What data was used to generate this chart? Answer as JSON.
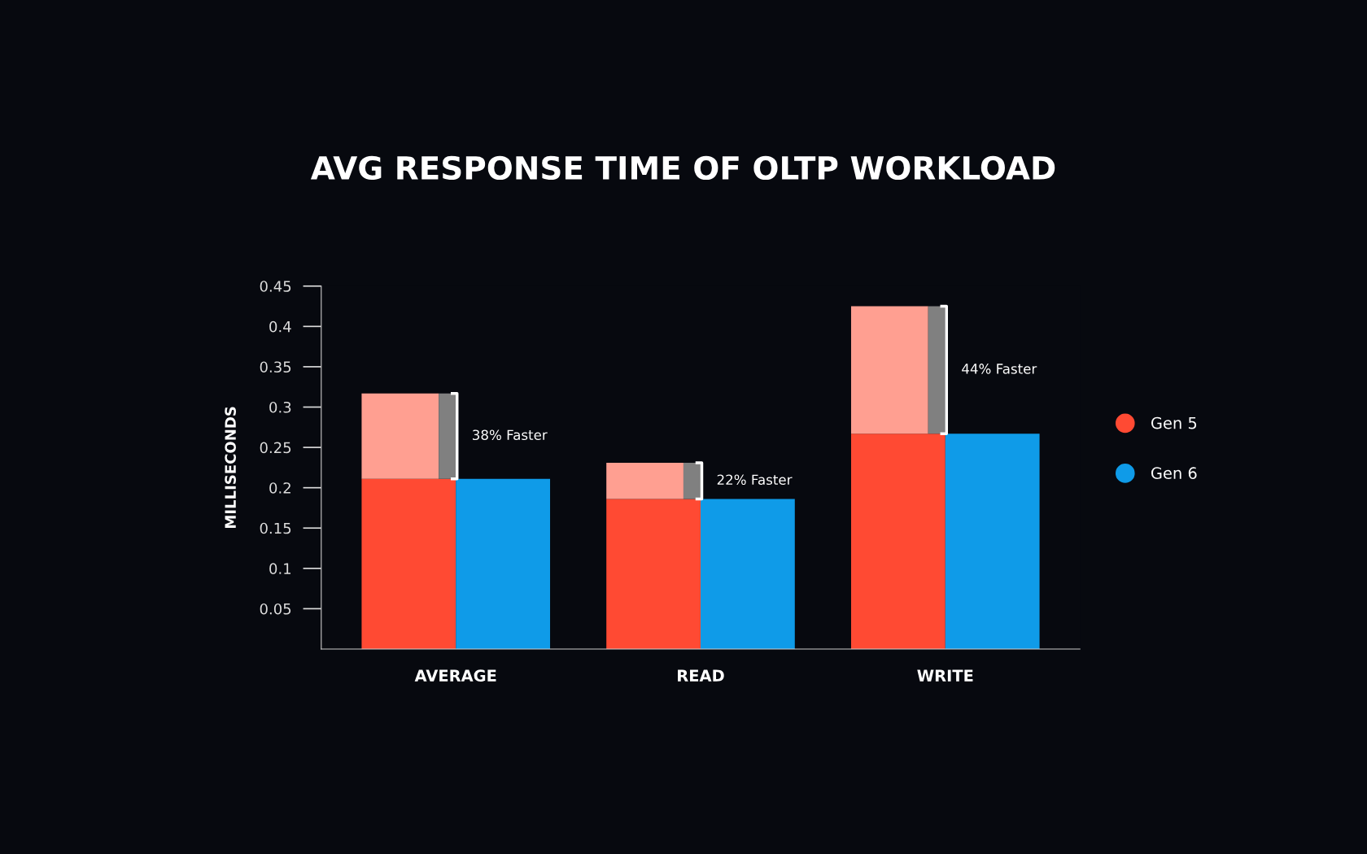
{
  "chart_data": {
    "type": "bar",
    "title": "AVG RESPONSE TIME OF OLTP WORKLOAD",
    "ylabel": "MILLISECONDS",
    "categories": [
      "AVERAGE",
      "READ",
      "WRITE"
    ],
    "series": [
      {
        "name": "Gen 5",
        "color": "#ff4a33",
        "values": [
          0.211,
          0.186,
          0.267
        ]
      },
      {
        "color": "#ff9f91",
        "values": [
          0.106,
          0.045,
          0.158
        ],
        "base": [
          0.211,
          0.186,
          0.267
        ]
      },
      {
        "name": "Gen 6",
        "color": "#0f9be8",
        "values": [
          0.211,
          0.186,
          0.267
        ]
      }
    ],
    "ylim": [
      0,
      0.45
    ],
    "yticks": [
      0.05,
      0.1,
      0.15,
      0.2,
      0.25,
      0.3,
      0.35,
      0.4,
      0.45
    ],
    "annotations": [
      "38% Faster",
      "22% Faster",
      "44% Faster"
    ],
    "legend": "right",
    "grid": false
  }
}
